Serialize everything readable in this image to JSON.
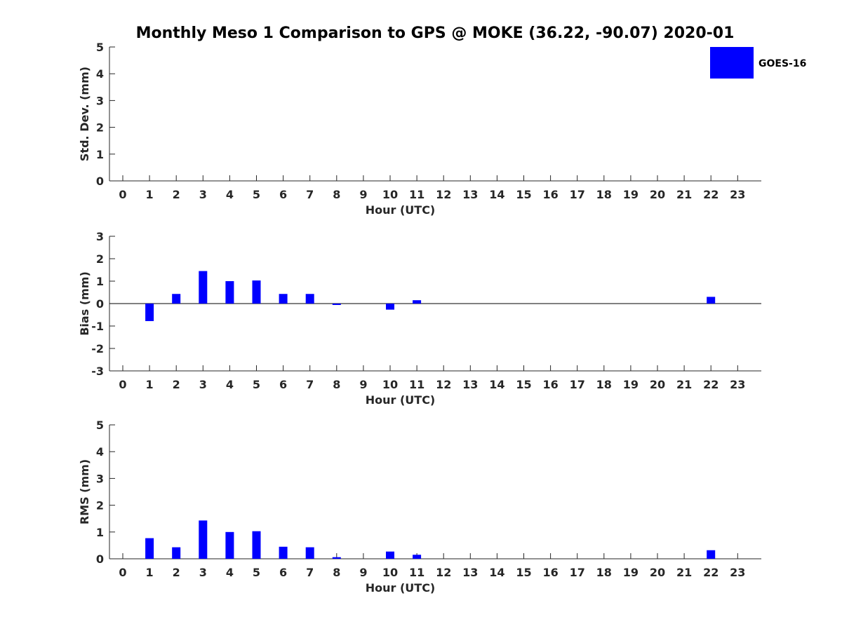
{
  "title": "Monthly Meso 1 Comparison to GPS @ MOKE (36.22, -90.07) 2020-01",
  "legend": {
    "label": "GOES-16",
    "color": "#0000ff"
  },
  "chart_data": [
    {
      "type": "bar",
      "name": "std-dev",
      "xlabel": "Hour (UTC)",
      "ylabel": "Std. Dev. (mm)",
      "ylim": [
        0,
        5
      ],
      "yticks": [
        0,
        1,
        2,
        3,
        4,
        5
      ],
      "categories": [
        "0",
        "1",
        "2",
        "3",
        "4",
        "5",
        "6",
        "7",
        "8",
        "9",
        "10",
        "11",
        "12",
        "13",
        "14",
        "15",
        "16",
        "17",
        "18",
        "19",
        "20",
        "21",
        "22",
        "23"
      ],
      "series": [
        {
          "values": [
            0,
            0,
            0,
            0,
            0,
            0,
            0,
            0,
            0,
            0,
            0,
            0,
            0,
            0,
            0,
            0,
            0,
            0,
            0,
            0,
            0,
            0,
            0,
            0
          ]
        }
      ],
      "zero_line": false
    },
    {
      "type": "bar",
      "name": "bias",
      "xlabel": "Hour (UTC)",
      "ylabel": "Bias (mm)",
      "ylim": [
        -3,
        3
      ],
      "yticks": [
        -3,
        -2,
        -1,
        0,
        1,
        2,
        3
      ],
      "categories": [
        "0",
        "1",
        "2",
        "3",
        "4",
        "5",
        "6",
        "7",
        "8",
        "9",
        "10",
        "11",
        "12",
        "13",
        "14",
        "15",
        "16",
        "17",
        "18",
        "19",
        "20",
        "21",
        "22",
        "23"
      ],
      "series": [
        {
          "values": [
            0,
            -0.78,
            0.43,
            1.45,
            1.0,
            1.03,
            0.43,
            0.43,
            -0.05,
            0,
            -0.27,
            0.15,
            0,
            0,
            0,
            0,
            0,
            0,
            0,
            0,
            0,
            0,
            0.3,
            0
          ]
        }
      ],
      "zero_line": true
    },
    {
      "type": "bar",
      "name": "rms",
      "xlabel": "Hour (UTC)",
      "ylabel": "RMS (mm)",
      "ylim": [
        0,
        5
      ],
      "yticks": [
        0,
        1,
        2,
        3,
        4,
        5
      ],
      "categories": [
        "0",
        "1",
        "2",
        "3",
        "4",
        "5",
        "6",
        "7",
        "8",
        "9",
        "10",
        "11",
        "12",
        "13",
        "14",
        "15",
        "16",
        "17",
        "18",
        "19",
        "20",
        "21",
        "22",
        "23"
      ],
      "series": [
        {
          "values": [
            0,
            0.77,
            0.43,
            1.43,
            1.0,
            1.03,
            0.45,
            0.43,
            0.06,
            0,
            0.27,
            0.15,
            0,
            0,
            0,
            0,
            0,
            0,
            0,
            0,
            0,
            0,
            0.32,
            0
          ]
        }
      ],
      "zero_line": false
    }
  ]
}
